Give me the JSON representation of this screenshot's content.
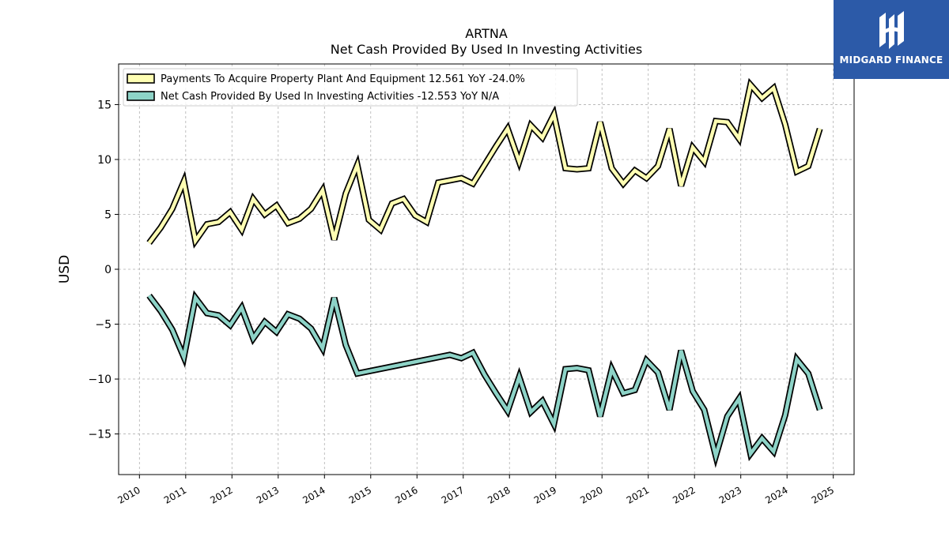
{
  "chart_data": {
    "type": "line",
    "title": "ARTNA",
    "subtitle": "Net Cash Provided By Used In Investing Activities",
    "xlabel": "",
    "ylabel": "USD",
    "xlim": [
      2009.55,
      2025.45
    ],
    "ylim": [
      -18.7,
      18.7
    ],
    "x_ticks": [
      "2010",
      "2011",
      "2012",
      "2013",
      "2014",
      "2015",
      "2016",
      "2017",
      "2018",
      "2019",
      "2020",
      "2021",
      "2022",
      "2023",
      "2024",
      "2025"
    ],
    "y_ticks": [
      15,
      10,
      5,
      0,
      -5,
      -10,
      -15
    ],
    "y_tick_labels": [
      "15",
      "10",
      "5",
      "0",
      "−5",
      "−10",
      "−15"
    ],
    "grid": true,
    "legend_position": "top-left",
    "series": [
      {
        "name": "Payments To Acquire Property Plant And Equipment",
        "legend_label": "Payments To Acquire Property Plant And Equipment  12.561 YoY -24.0%",
        "color": "#ffffb3",
        "x": [
          2010.21,
          2010.46,
          2010.71,
          2010.96,
          2011.21,
          2011.46,
          2011.71,
          2011.96,
          2012.21,
          2012.46,
          2012.71,
          2012.96,
          2013.21,
          2013.46,
          2013.71,
          2013.96,
          2014.21,
          2014.46,
          2014.71,
          2014.96,
          2015.21,
          2015.46,
          2015.71,
          2015.96,
          2016.21,
          2016.46,
          2016.71,
          2016.96,
          2017.21,
          2017.46,
          2017.71,
          2017.96,
          2018.21,
          2018.46,
          2018.71,
          2018.96,
          2019.21,
          2019.46,
          2019.71,
          2019.96,
          2020.21,
          2020.46,
          2020.71,
          2020.96,
          2021.21,
          2021.46,
          2021.71,
          2021.96,
          2022.21,
          2022.46,
          2022.71,
          2022.96,
          2023.21,
          2023.46,
          2023.71,
          2023.96,
          2024.21,
          2024.46,
          2024.71
        ],
        "values": [
          2.4,
          3.8,
          5.5,
          8.0,
          2.6,
          4.1,
          4.3,
          5.2,
          3.6,
          6.4,
          5.0,
          5.8,
          4.2,
          4.6,
          5.5,
          7.2,
          2.7,
          6.9,
          9.5,
          4.5,
          3.6,
          6.0,
          6.4,
          4.9,
          4.3,
          7.9,
          8.1,
          8.3,
          7.8,
          9.5,
          11.2,
          12.8,
          9.8,
          13.1,
          12.0,
          14.1,
          9.2,
          9.1,
          9.2,
          13.4,
          9.2,
          7.8,
          9.0,
          8.3,
          9.4,
          12.8,
          7.6,
          11.1,
          9.8,
          13.5,
          13.4,
          11.9,
          16.8,
          15.6,
          16.5,
          13.2,
          8.9,
          9.4,
          12.8
        ]
      },
      {
        "name": "Net Cash Provided By Used In Investing Activities",
        "legend_label": "Net Cash Provided By Used In Investing Activities  -12.553 YoY N/A",
        "color": "#8dd3c7",
        "x": [
          2010.21,
          2010.46,
          2010.71,
          2010.96,
          2011.21,
          2011.46,
          2011.71,
          2011.96,
          2012.21,
          2012.46,
          2012.71,
          2012.96,
          2013.21,
          2013.46,
          2013.71,
          2013.96,
          2014.21,
          2014.46,
          2014.71,
          2016.71,
          2016.96,
          2017.21,
          2017.46,
          2017.71,
          2017.96,
          2018.21,
          2018.46,
          2018.71,
          2018.96,
          2019.21,
          2019.46,
          2019.71,
          2019.96,
          2020.21,
          2020.46,
          2020.71,
          2020.96,
          2021.21,
          2021.46,
          2021.71,
          2021.96,
          2022.21,
          2022.46,
          2022.71,
          2022.96,
          2023.21,
          2023.46,
          2023.71,
          2023.96,
          2024.21,
          2024.46,
          2024.71
        ],
        "values": [
          -2.4,
          -3.8,
          -5.5,
          -8.0,
          -2.6,
          -4.0,
          -4.2,
          -5.1,
          -3.5,
          -6.3,
          -4.8,
          -5.7,
          -4.1,
          -4.5,
          -5.4,
          -7.2,
          -2.6,
          -6.9,
          -9.5,
          -7.8,
          -8.1,
          -7.6,
          -9.6,
          -11.3,
          -12.9,
          -9.8,
          -13.0,
          -12.0,
          -14.1,
          -9.1,
          -9.0,
          -9.2,
          -13.4,
          -9.1,
          -11.3,
          -11.0,
          -8.3,
          -9.4,
          -12.8,
          -7.4,
          -11.1,
          -12.8,
          -17.0,
          -13.4,
          -11.8,
          -16.8,
          -15.4,
          -16.6,
          -13.3,
          -8.2,
          -9.5,
          -12.8
        ]
      }
    ]
  },
  "logo": {
    "brand_text": "MIDGARD FINANCE",
    "icon": "midgard-logo-icon"
  }
}
